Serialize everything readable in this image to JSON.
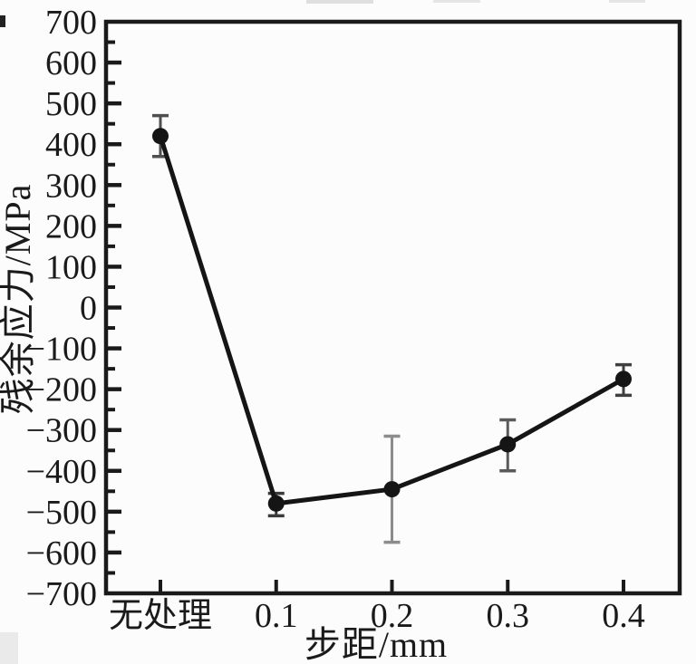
{
  "figure": {
    "background": "#fcfcfc",
    "ink": "#1a1a1a"
  },
  "chart_data": {
    "type": "line",
    "title": "",
    "categories": [
      "无处理",
      "0.1",
      "0.2",
      "0.3",
      "0.4"
    ],
    "series": [
      {
        "name": "残余应力",
        "values": [
          420,
          -480,
          -445,
          -335,
          -175
        ],
        "error_upper": [
          470,
          -455,
          -315,
          -275,
          -140
        ],
        "error_lower": [
          370,
          -510,
          -575,
          -400,
          -215
        ]
      }
    ],
    "xlabel": "步距/mm",
    "ylabel": "残余应力/MPa",
    "ylim": [
      -700,
      700
    ],
    "y_major_step": 100,
    "y_minor_step": 50,
    "y_tick_values": [
      700,
      600,
      500,
      400,
      300,
      200,
      100,
      0,
      -100,
      -200,
      -300,
      -400,
      -500,
      -600,
      -700
    ],
    "y_tick_labels": [
      "700",
      "600",
      "500",
      "400",
      "300",
      "200",
      "100",
      "0",
      "−100",
      "−200",
      "−300",
      "−400",
      "−500",
      "−600",
      "−700"
    ],
    "grid": false,
    "legend": "none",
    "marker": "filled-circle",
    "marker_color": "#151515",
    "line_color": "#151515",
    "error_bar_colors": [
      "#4f4f4f",
      "#3a3a3a",
      "#8c8c8c",
      "#5a5a5a",
      "#3f3f3f"
    ]
  }
}
